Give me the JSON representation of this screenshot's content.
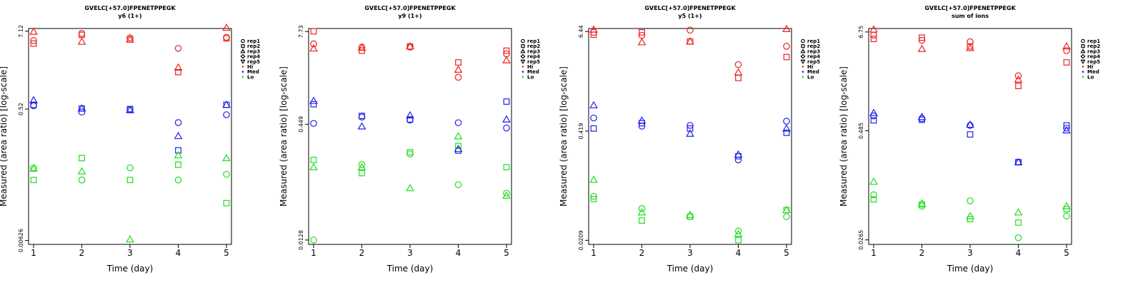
{
  "legend": {
    "shapes": [
      {
        "label": "rep1",
        "shape": "circle"
      },
      {
        "label": "rep2",
        "shape": "square"
      },
      {
        "label": "rep3",
        "shape": "triangle"
      },
      {
        "label": "rep4",
        "shape": "diamond"
      },
      {
        "label": "rep5",
        "shape": "triangle-down"
      }
    ],
    "colors": [
      {
        "label": "Hi",
        "color": "#ee2020"
      },
      {
        "label": "Med",
        "color": "#2020ee"
      },
      {
        "label": "Lo",
        "color": "#20dd20"
      }
    ]
  },
  "chart_data": [
    {
      "type": "scatter",
      "title": "GVELC[+57.0]FPENETPPEGK",
      "subtitle": "y6 (1+)",
      "xlabel": "Time (day)",
      "ylabel": "Measured (area ratio) [log-scale]",
      "x_ticks": [
        "1",
        "2",
        "3",
        "4",
        "5"
      ],
      "y_ticks": [
        {
          "label": "0.00626",
          "value": 0.00626
        },
        {
          "label": "0.52",
          "value": 0.52
        },
        {
          "label": "7.12",
          "value": 7.12
        }
      ],
      "ylim": [
        0.0055,
        7.8
      ],
      "log_y": true,
      "series": [
        {
          "name": "Hi",
          "shape": "circle",
          "color": "#ee2020",
          "x": [
            1,
            2,
            3,
            4,
            5
          ],
          "y": [
            5.2,
            6.6,
            5.7,
            4.0,
            5.8
          ]
        },
        {
          "name": "Hi",
          "shape": "square",
          "color": "#ee2020",
          "x": [
            1,
            2,
            3,
            4,
            5
          ],
          "y": [
            4.7,
            6.3,
            5.4,
            1.8,
            5.6
          ]
        },
        {
          "name": "Hi",
          "shape": "triangle",
          "color": "#ee2020",
          "x": [
            1,
            2,
            3,
            4,
            5
          ],
          "y": [
            7.0,
            5.0,
            5.4,
            2.1,
            8.0
          ]
        },
        {
          "name": "Med",
          "shape": "circle",
          "color": "#2020ee",
          "x": [
            1,
            2,
            3,
            4,
            5
          ],
          "y": [
            0.58,
            0.47,
            0.51,
            0.33,
            0.43
          ]
        },
        {
          "name": "Med",
          "shape": "square",
          "color": "#2020ee",
          "x": [
            1,
            2,
            3,
            4,
            5
          ],
          "y": [
            0.6,
            0.53,
            0.52,
            0.13,
            0.6
          ]
        },
        {
          "name": "Med",
          "shape": "triangle",
          "color": "#2020ee",
          "x": [
            1,
            2,
            3,
            4,
            5
          ],
          "y": [
            0.7,
            0.53,
            0.5,
            0.21,
            0.6
          ]
        },
        {
          "name": "Lo",
          "shape": "circle",
          "color": "#20dd20",
          "x": [
            1,
            2,
            3,
            4,
            5
          ],
          "y": [
            0.072,
            0.048,
            0.072,
            0.048,
            0.058
          ]
        },
        {
          "name": "Lo",
          "shape": "square",
          "color": "#20dd20",
          "x": [
            1,
            2,
            3,
            4,
            5
          ],
          "y": [
            0.048,
            0.1,
            0.048,
            0.08,
            0.022
          ]
        },
        {
          "name": "Lo",
          "shape": "triangle",
          "color": "#20dd20",
          "x": [
            1,
            2,
            3,
            4,
            5
          ],
          "y": [
            0.07,
            0.064,
            0.0065,
            0.11,
            0.1
          ]
        }
      ]
    },
    {
      "type": "scatter",
      "title": "GVELC[+57.0]FPENETPPEGK",
      "subtitle": "y9 (1+)",
      "xlabel": "Time (day)",
      "ylabel": "Measured (area ratio) [log-scale]",
      "x_ticks": [
        "1",
        "2",
        "3",
        "4",
        "5"
      ],
      "y_ticks": [
        {
          "label": "0.0128",
          "value": 0.0128
        },
        {
          "label": "0.449",
          "value": 0.449
        },
        {
          "label": "7.73",
          "value": 7.73
        }
      ],
      "ylim": [
        0.0112,
        8.5
      ],
      "log_y": true,
      "series": [
        {
          "name": "Hi",
          "shape": "circle",
          "color": "#ee2020",
          "x": [
            1,
            2,
            3,
            4,
            5
          ],
          "y": [
            5.3,
            4.8,
            4.8,
            1.9,
            3.9
          ]
        },
        {
          "name": "Hi",
          "shape": "square",
          "color": "#ee2020",
          "x": [
            1,
            2,
            3,
            4,
            5
          ],
          "y": [
            7.8,
            4.3,
            4.9,
            3.0,
            4.3
          ]
        },
        {
          "name": "Hi",
          "shape": "triangle",
          "color": "#ee2020",
          "x": [
            1,
            2,
            3,
            4,
            5
          ],
          "y": [
            4.6,
            4.7,
            4.9,
            2.4,
            3.2
          ]
        },
        {
          "name": "Med",
          "shape": "circle",
          "color": "#2020ee",
          "x": [
            1,
            2,
            3,
            4,
            5
          ],
          "y": [
            0.46,
            0.56,
            0.51,
            0.47,
            0.4
          ]
        },
        {
          "name": "Med",
          "shape": "square",
          "color": "#2020ee",
          "x": [
            1,
            2,
            3,
            4,
            5
          ],
          "y": [
            0.83,
            0.58,
            0.52,
            0.2,
            0.9
          ]
        },
        {
          "name": "Med",
          "shape": "triangle",
          "color": "#2020ee",
          "x": [
            1,
            2,
            3,
            4,
            5
          ],
          "y": [
            0.92,
            0.42,
            0.59,
            0.21,
            0.52
          ]
        },
        {
          "name": "Lo",
          "shape": "circle",
          "color": "#20dd20",
          "x": [
            1,
            2,
            3,
            4,
            5
          ],
          "y": [
            0.0128,
            0.13,
            0.18,
            0.07,
            0.054
          ]
        },
        {
          "name": "Lo",
          "shape": "square",
          "color": "#20dd20",
          "x": [
            1,
            2,
            3,
            4,
            5
          ],
          "y": [
            0.15,
            0.1,
            0.19,
            0.23,
            0.12
          ]
        },
        {
          "name": "Lo",
          "shape": "triangle",
          "color": "#20dd20",
          "x": [
            1,
            2,
            3,
            4,
            5
          ],
          "y": [
            0.12,
            0.12,
            0.063,
            0.31,
            0.05
          ]
        }
      ]
    },
    {
      "type": "scatter",
      "title": "GVELC[+57.0]FPENETPPEGK",
      "subtitle": "y5 (1+)",
      "xlabel": "Time (day)",
      "ylabel": "Measured (area ratio) [log-scale]",
      "x_ticks": [
        "1",
        "2",
        "3",
        "4",
        "5"
      ],
      "y_ticks": [
        {
          "label": "0.0209",
          "value": 0.0209
        },
        {
          "label": "0.419",
          "value": 0.419
        },
        {
          "label": "6.44",
          "value": 6.44
        }
      ],
      "ylim": [
        0.0187,
        7.0
      ],
      "log_y": true,
      "series": [
        {
          "name": "Hi",
          "shape": "circle",
          "color": "#ee2020",
          "x": [
            1,
            2,
            3,
            4,
            5
          ],
          "y": [
            6.3,
            5.8,
            6.7,
            2.6,
            4.3
          ]
        },
        {
          "name": "Hi",
          "shape": "square",
          "color": "#ee2020",
          "x": [
            1,
            2,
            3,
            4,
            5
          ],
          "y": [
            5.9,
            6.3,
            4.9,
            1.8,
            3.2
          ]
        },
        {
          "name": "Hi",
          "shape": "triangle",
          "color": "#ee2020",
          "x": [
            1,
            2,
            3,
            4,
            5
          ],
          "y": [
            6.8,
            4.8,
            4.9,
            2.1,
            6.9
          ]
        },
        {
          "name": "Med",
          "shape": "circle",
          "color": "#2020ee",
          "x": [
            1,
            2,
            3,
            4,
            5
          ],
          "y": [
            0.6,
            0.48,
            0.49,
            0.19,
            0.55
          ]
        },
        {
          "name": "Med",
          "shape": "square",
          "color": "#2020ee",
          "x": [
            1,
            2,
            3,
            4,
            5
          ],
          "y": [
            0.45,
            0.52,
            0.45,
            0.21,
            0.4
          ]
        },
        {
          "name": "Med",
          "shape": "triangle",
          "color": "#2020ee",
          "x": [
            1,
            2,
            3,
            4,
            5
          ],
          "y": [
            0.85,
            0.56,
            0.39,
            0.22,
            0.45
          ]
        },
        {
          "name": "Lo",
          "shape": "circle",
          "color": "#20dd20",
          "x": [
            1,
            2,
            3,
            4,
            5
          ],
          "y": [
            0.07,
            0.05,
            0.04,
            0.027,
            0.04
          ]
        },
        {
          "name": "Lo",
          "shape": "square",
          "color": "#20dd20",
          "x": [
            1,
            2,
            3,
            4,
            5
          ],
          "y": [
            0.065,
            0.036,
            0.04,
            0.021,
            0.048
          ]
        },
        {
          "name": "Lo",
          "shape": "triangle",
          "color": "#20dd20",
          "x": [
            1,
            2,
            3,
            4,
            5
          ],
          "y": [
            0.11,
            0.045,
            0.042,
            0.025,
            0.048
          ]
        }
      ]
    },
    {
      "type": "scatter",
      "title": "GVELC[+57.0]FPENETPPEGK",
      "subtitle": "sum of ions",
      "xlabel": "Time (day)",
      "ylabel": "Measured (area ratio) [log-scale]",
      "x_ticks": [
        "1",
        "2",
        "3",
        "4",
        "5"
      ],
      "y_ticks": [
        {
          "label": "0.0265",
          "value": 0.0265
        },
        {
          "label": "0.485",
          "value": 0.485
        },
        {
          "label": "6.75",
          "value": 6.75
        }
      ],
      "ylim": [
        0.0235,
        7.4
      ],
      "log_y": true,
      "series": [
        {
          "name": "Hi",
          "shape": "circle",
          "color": "#ee2020",
          "x": [
            1,
            2,
            3,
            4,
            5
          ],
          "y": [
            6.2,
            5.4,
            5.2,
            2.1,
            4.1
          ]
        },
        {
          "name": "Hi",
          "shape": "square",
          "color": "#ee2020",
          "x": [
            1,
            2,
            3,
            4,
            5
          ],
          "y": [
            5.6,
            5.8,
            4.6,
            1.6,
            3.0
          ]
        },
        {
          "name": "Hi",
          "shape": "triangle",
          "color": "#ee2020",
          "x": [
            1,
            2,
            3,
            4,
            5
          ],
          "y": [
            7.2,
            4.3,
            4.4,
            1.9,
            4.6
          ]
        },
        {
          "name": "Med",
          "shape": "circle",
          "color": "#2020ee",
          "x": [
            1,
            2,
            3,
            4,
            5
          ],
          "y": [
            0.72,
            0.67,
            0.56,
            0.21,
            0.52
          ]
        },
        {
          "name": "Med",
          "shape": "square",
          "color": "#2020ee",
          "x": [
            1,
            2,
            3,
            4,
            5
          ],
          "y": [
            0.64,
            0.65,
            0.44,
            0.21,
            0.56
          ]
        },
        {
          "name": "Med",
          "shape": "triangle",
          "color": "#2020ee",
          "x": [
            1,
            2,
            3,
            4,
            5
          ],
          "y": [
            0.78,
            0.7,
            0.57,
            0.21,
            0.49
          ]
        },
        {
          "name": "Lo",
          "shape": "circle",
          "color": "#20dd20",
          "x": [
            1,
            2,
            3,
            4,
            5
          ],
          "y": [
            0.088,
            0.065,
            0.075,
            0.028,
            0.05
          ]
        },
        {
          "name": "Lo",
          "shape": "square",
          "color": "#20dd20",
          "x": [
            1,
            2,
            3,
            4,
            5
          ],
          "y": [
            0.078,
            0.068,
            0.046,
            0.042,
            0.06
          ]
        },
        {
          "name": "Lo",
          "shape": "triangle",
          "color": "#20dd20",
          "x": [
            1,
            2,
            3,
            4,
            5
          ],
          "y": [
            0.125,
            0.07,
            0.05,
            0.055,
            0.065
          ]
        }
      ]
    }
  ]
}
